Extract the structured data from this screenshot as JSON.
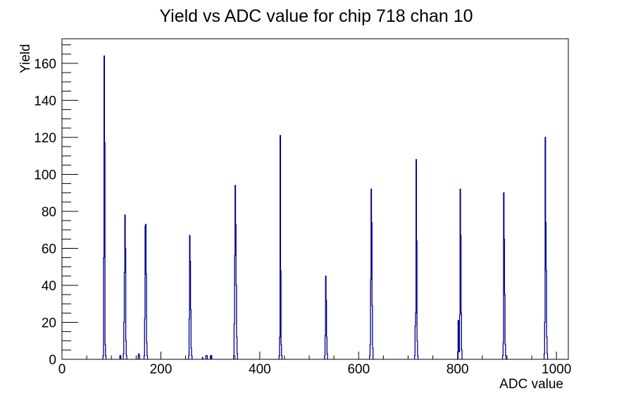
{
  "window": {
    "background_color": "#ffffff"
  },
  "chart_data": {
    "type": "bar",
    "subtype": "histogram-step-outline",
    "title": "Yield vs ADC value for chip 718 chan 10",
    "xlabel": "ADC value",
    "ylabel": "Yield",
    "xlim": [
      0,
      1024
    ],
    "ylim": [
      0,
      173.3
    ],
    "grid": false,
    "legend": "none",
    "line_color": "#00008b",
    "frame_color": "#000000",
    "x_major_ticks": [
      0,
      200,
      400,
      600,
      800,
      1000
    ],
    "x_minor_step": 50,
    "y_major_ticks": [
      0,
      20,
      40,
      60,
      80,
      100,
      120,
      140,
      160
    ],
    "y_minor_step": 5,
    "bins_note": "each entry is [ADC value (bin of width 1), yield]",
    "bins": [
      [
        83,
        2
      ],
      [
        84,
        55
      ],
      [
        85,
        164
      ],
      [
        86,
        117
      ],
      [
        87,
        8
      ],
      [
        88,
        2
      ],
      [
        117,
        2
      ],
      [
        118,
        2
      ],
      [
        124,
        3
      ],
      [
        125,
        20
      ],
      [
        126,
        47
      ],
      [
        127,
        78
      ],
      [
        128,
        60
      ],
      [
        129,
        10
      ],
      [
        130,
        2
      ],
      [
        154,
        2
      ],
      [
        155,
        3
      ],
      [
        156,
        2
      ],
      [
        166,
        2
      ],
      [
        167,
        22
      ],
      [
        168,
        72
      ],
      [
        169,
        73
      ],
      [
        170,
        46
      ],
      [
        171,
        9
      ],
      [
        172,
        2
      ],
      [
        256,
        2
      ],
      [
        257,
        22
      ],
      [
        258,
        67
      ],
      [
        259,
        53
      ],
      [
        260,
        27
      ],
      [
        261,
        6
      ],
      [
        262,
        2
      ],
      [
        284,
        1
      ],
      [
        291,
        2
      ],
      [
        292,
        2
      ],
      [
        293,
        2
      ],
      [
        301,
        2
      ],
      [
        302,
        2
      ],
      [
        347,
        2
      ],
      [
        348,
        19
      ],
      [
        349,
        56
      ],
      [
        350,
        94
      ],
      [
        351,
        73
      ],
      [
        352,
        40
      ],
      [
        353,
        12
      ],
      [
        354,
        3
      ],
      [
        439,
        2
      ],
      [
        440,
        12
      ],
      [
        441,
        121
      ],
      [
        442,
        48
      ],
      [
        443,
        8
      ],
      [
        444,
        2
      ],
      [
        531,
        2
      ],
      [
        532,
        13
      ],
      [
        533,
        45
      ],
      [
        534,
        32
      ],
      [
        535,
        12
      ],
      [
        536,
        3
      ],
      [
        622,
        2
      ],
      [
        623,
        8
      ],
      [
        624,
        43
      ],
      [
        625,
        92
      ],
      [
        626,
        74
      ],
      [
        627,
        29
      ],
      [
        628,
        6
      ],
      [
        713,
        2
      ],
      [
        714,
        18
      ],
      [
        715,
        25
      ],
      [
        716,
        108
      ],
      [
        717,
        64
      ],
      [
        718,
        10
      ],
      [
        719,
        2
      ],
      [
        801,
        21
      ],
      [
        802,
        19
      ],
      [
        803,
        4
      ],
      [
        804,
        24
      ],
      [
        805,
        92
      ],
      [
        806,
        67
      ],
      [
        807,
        25
      ],
      [
        808,
        5
      ],
      [
        891,
        2
      ],
      [
        892,
        9
      ],
      [
        893,
        90
      ],
      [
        894,
        65
      ],
      [
        895,
        35
      ],
      [
        896,
        8
      ],
      [
        897,
        2
      ],
      [
        975,
        3
      ],
      [
        976,
        20
      ],
      [
        977,
        120
      ],
      [
        978,
        74
      ],
      [
        979,
        48
      ],
      [
        980,
        12
      ],
      [
        981,
        3
      ]
    ],
    "peak_summary": [
      {
        "adc": 85,
        "yield": 164
      },
      {
        "adc": 127,
        "yield": 78
      },
      {
        "adc": 169,
        "yield": 73
      },
      {
        "adc": 258,
        "yield": 67
      },
      {
        "adc": 350,
        "yield": 94
      },
      {
        "adc": 441,
        "yield": 121
      },
      {
        "adc": 533,
        "yield": 45
      },
      {
        "adc": 625,
        "yield": 92
      },
      {
        "adc": 716,
        "yield": 108
      },
      {
        "adc": 805,
        "yield": 92
      },
      {
        "adc": 893,
        "yield": 90
      },
      {
        "adc": 977,
        "yield": 120
      }
    ]
  }
}
